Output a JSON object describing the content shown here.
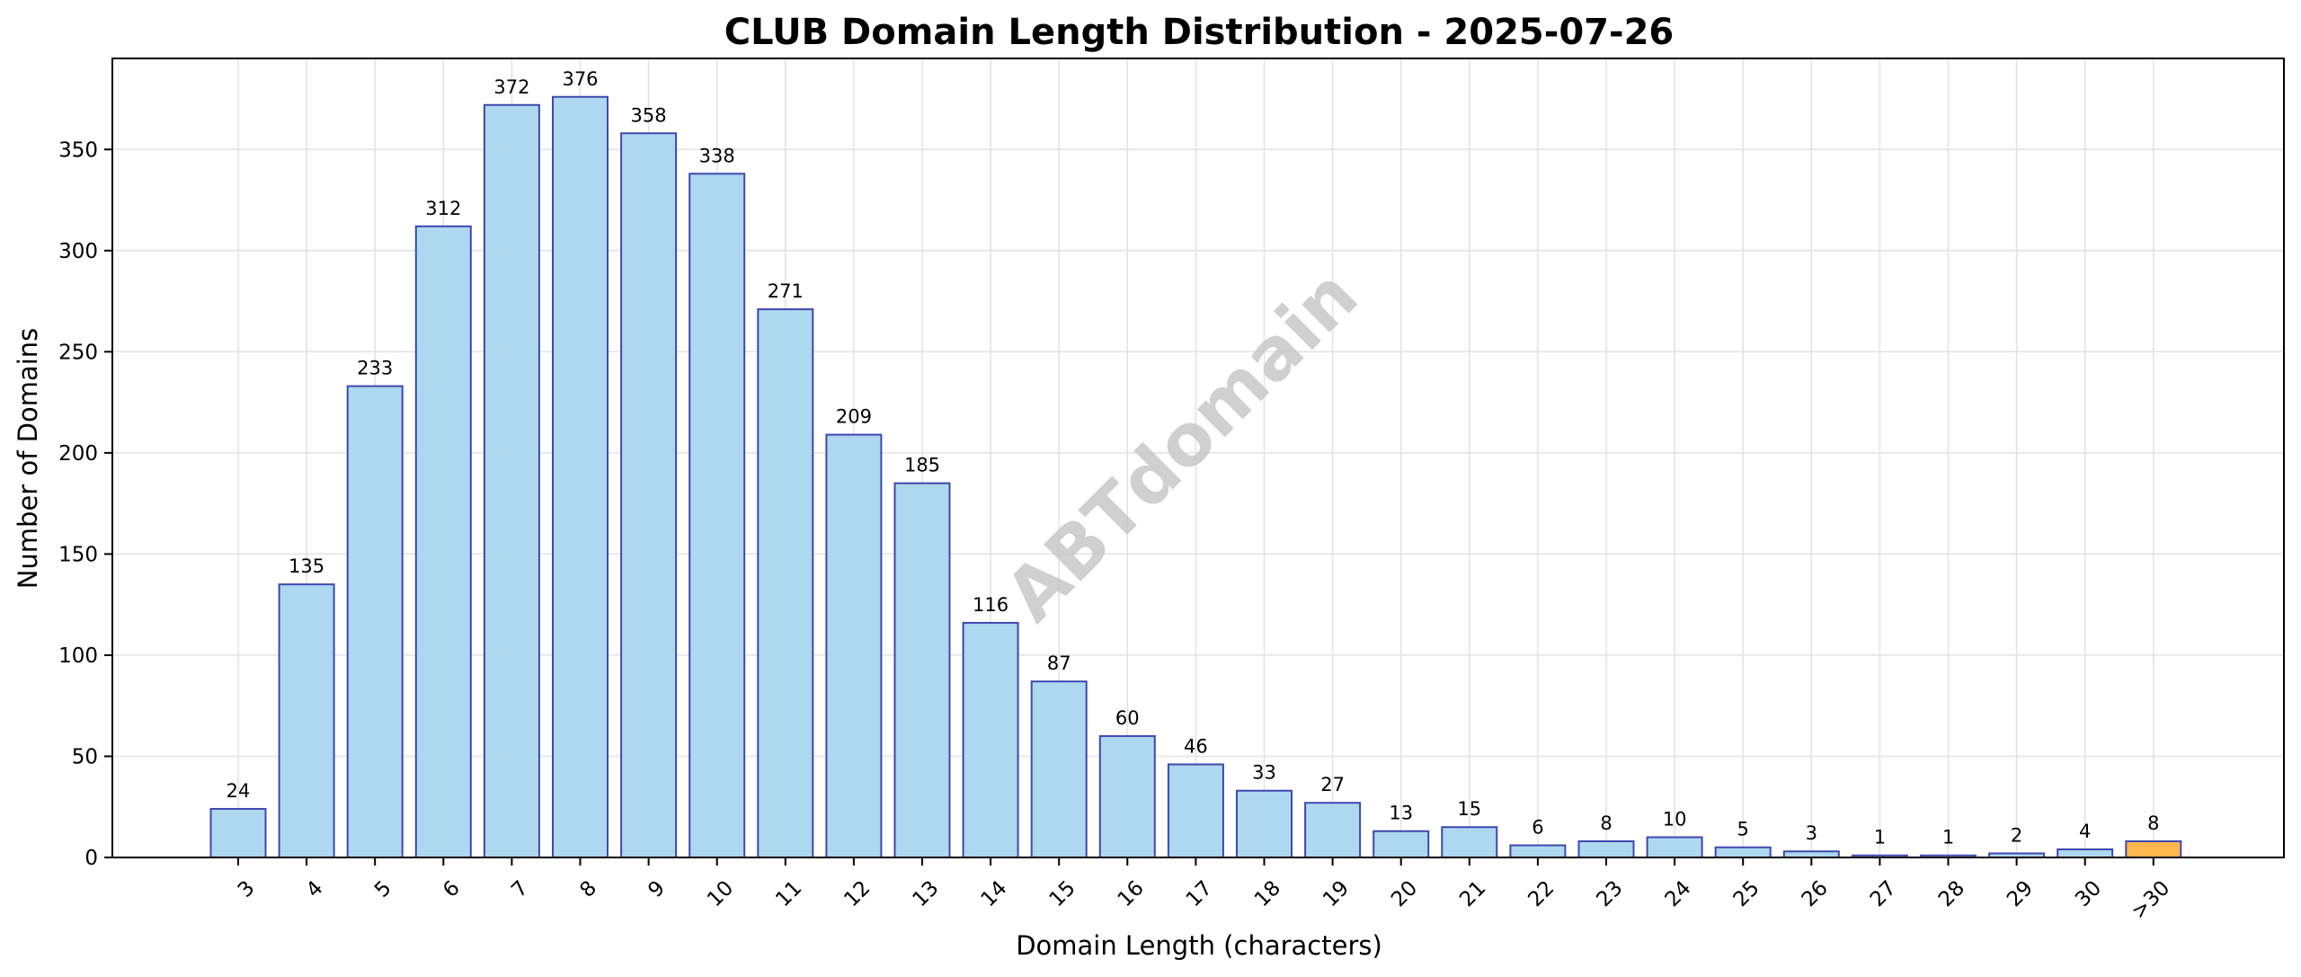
{
  "chart_data": {
    "type": "bar",
    "title": "CLUB Domain Length Distribution - 2025-07-26",
    "xlabel": "Domain Length (characters)",
    "ylabel": "Number of Domains",
    "watermark": "ABTdomain",
    "categories": [
      "3",
      "4",
      "5",
      "6",
      "7",
      "8",
      "9",
      "10",
      "11",
      "12",
      "13",
      "14",
      "15",
      "16",
      "17",
      "18",
      "19",
      "20",
      "21",
      "22",
      "23",
      "24",
      "25",
      "26",
      "27",
      "28",
      "29",
      "30",
      ">30"
    ],
    "values": [
      24,
      135,
      233,
      312,
      372,
      376,
      358,
      338,
      271,
      209,
      185,
      116,
      87,
      60,
      46,
      33,
      27,
      13,
      15,
      6,
      8,
      10,
      5,
      3,
      1,
      1,
      2,
      4,
      8
    ],
    "ylim": [
      0,
      395
    ],
    "yticks": [
      0,
      50,
      100,
      150,
      200,
      250,
      300,
      350
    ],
    "grid": true,
    "colors": {
      "bar_fill": "#add8ef",
      "bar_edge": "#3f48b0",
      "overflow_fill": "#ffb74d",
      "grid": "#e2e2e2",
      "axis": "#000000"
    }
  }
}
